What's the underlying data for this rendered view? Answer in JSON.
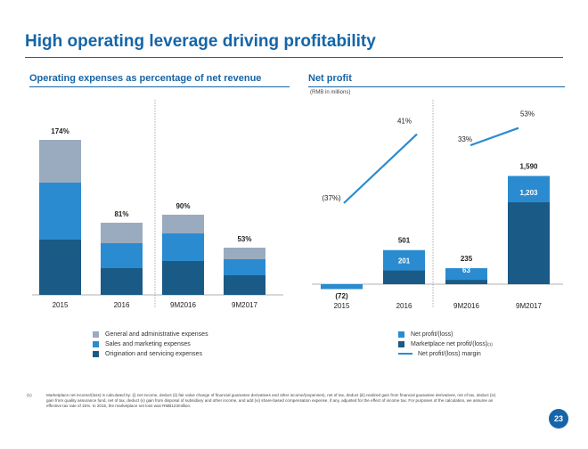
{
  "title": "High operating leverage driving profitability",
  "left_chart_title": "Operating expenses as percentage of net revenue",
  "right_chart_title": "Net profit",
  "right_chart_unit": "(RMB in millions)",
  "colors": {
    "accent": "#1565a8",
    "gray": "#9aabbf",
    "mid_blue": "#2b8bd0",
    "dark_blue": "#1a5a86"
  },
  "chart_data": [
    {
      "type": "bar",
      "stacked": true,
      "title": "Operating expenses as percentage of net revenue",
      "categories": [
        "2015",
        "2016",
        "9M2016",
        "9M2017"
      ],
      "totals": [
        "174%",
        "81%",
        "90%",
        "53%"
      ],
      "series": [
        {
          "name": "Origination and servicing expenses",
          "color": "#1a5a86",
          "values": [
            62,
            30,
            38,
            22
          ]
        },
        {
          "name": "Sales and marketing expenses",
          "color": "#2b8bd0",
          "values": [
            64,
            28,
            31,
            18
          ]
        },
        {
          "name": "General and administrative expenses",
          "color": "#9aabbf",
          "values": [
            48,
            23,
            21,
            13
          ]
        }
      ],
      "ylim": [
        0,
        180
      ],
      "legend": [
        {
          "label": "General and administrative expenses",
          "color": "#9aabbf"
        },
        {
          "label": "Sales and marketing expenses",
          "color": "#2b8bd0"
        },
        {
          "label": "Origination and servicing expenses",
          "color": "#1a5a86"
        }
      ]
    },
    {
      "type": "bar",
      "title": "Net profit",
      "unit": "(RMB in millions)",
      "categories": [
        "2015",
        "2016",
        "9M2016",
        "9M2017"
      ],
      "net_profit": [
        -72,
        501,
        235,
        1590
      ],
      "marketplace_net_profit": [
        null,
        201,
        63,
        1203
      ],
      "net_profit_labels": [
        "(72)",
        "501",
        "235",
        "1,590"
      ],
      "marketplace_labels": [
        "",
        "201",
        "63",
        "1,203"
      ],
      "margin": [
        -37,
        41,
        33,
        53
      ],
      "margin_labels": [
        "(37%)",
        "41%",
        "33%",
        "53%"
      ],
      "ylim": [
        -100,
        1700
      ],
      "legend": [
        {
          "label": "Net profit/(loss)",
          "color": "#2b8bd0",
          "kind": "swatch"
        },
        {
          "label": "Marketplace net profit/(loss)",
          "sup": "(1)",
          "color": "#1a5a86",
          "kind": "swatch"
        },
        {
          "label": "Net profit/(loss) margin",
          "color": "#2b8bd0",
          "kind": "line"
        }
      ]
    }
  ],
  "footnote_mark": "(1)",
  "footnote": "Marketplace net income/(loss) is calculated by: (i) net income, deduct (ii) fair value change of financial guarantee derivatives and other income/(expenses), net of tax, deduct (iii) realized gain from financial guarantee derivatives, net of tax, deduct (iv) gain from quality assurance fund, net of tax, deduct (v) gain from disposal of subsidiary and other income, and add (vi) share-based compensation expense, if any, adjusted for the effect of income tax. For purposes of the calculation, we assume an effective tax rate of 15%. In 2015, the marketplace net loss was RMB123million.",
  "page_number": "23"
}
